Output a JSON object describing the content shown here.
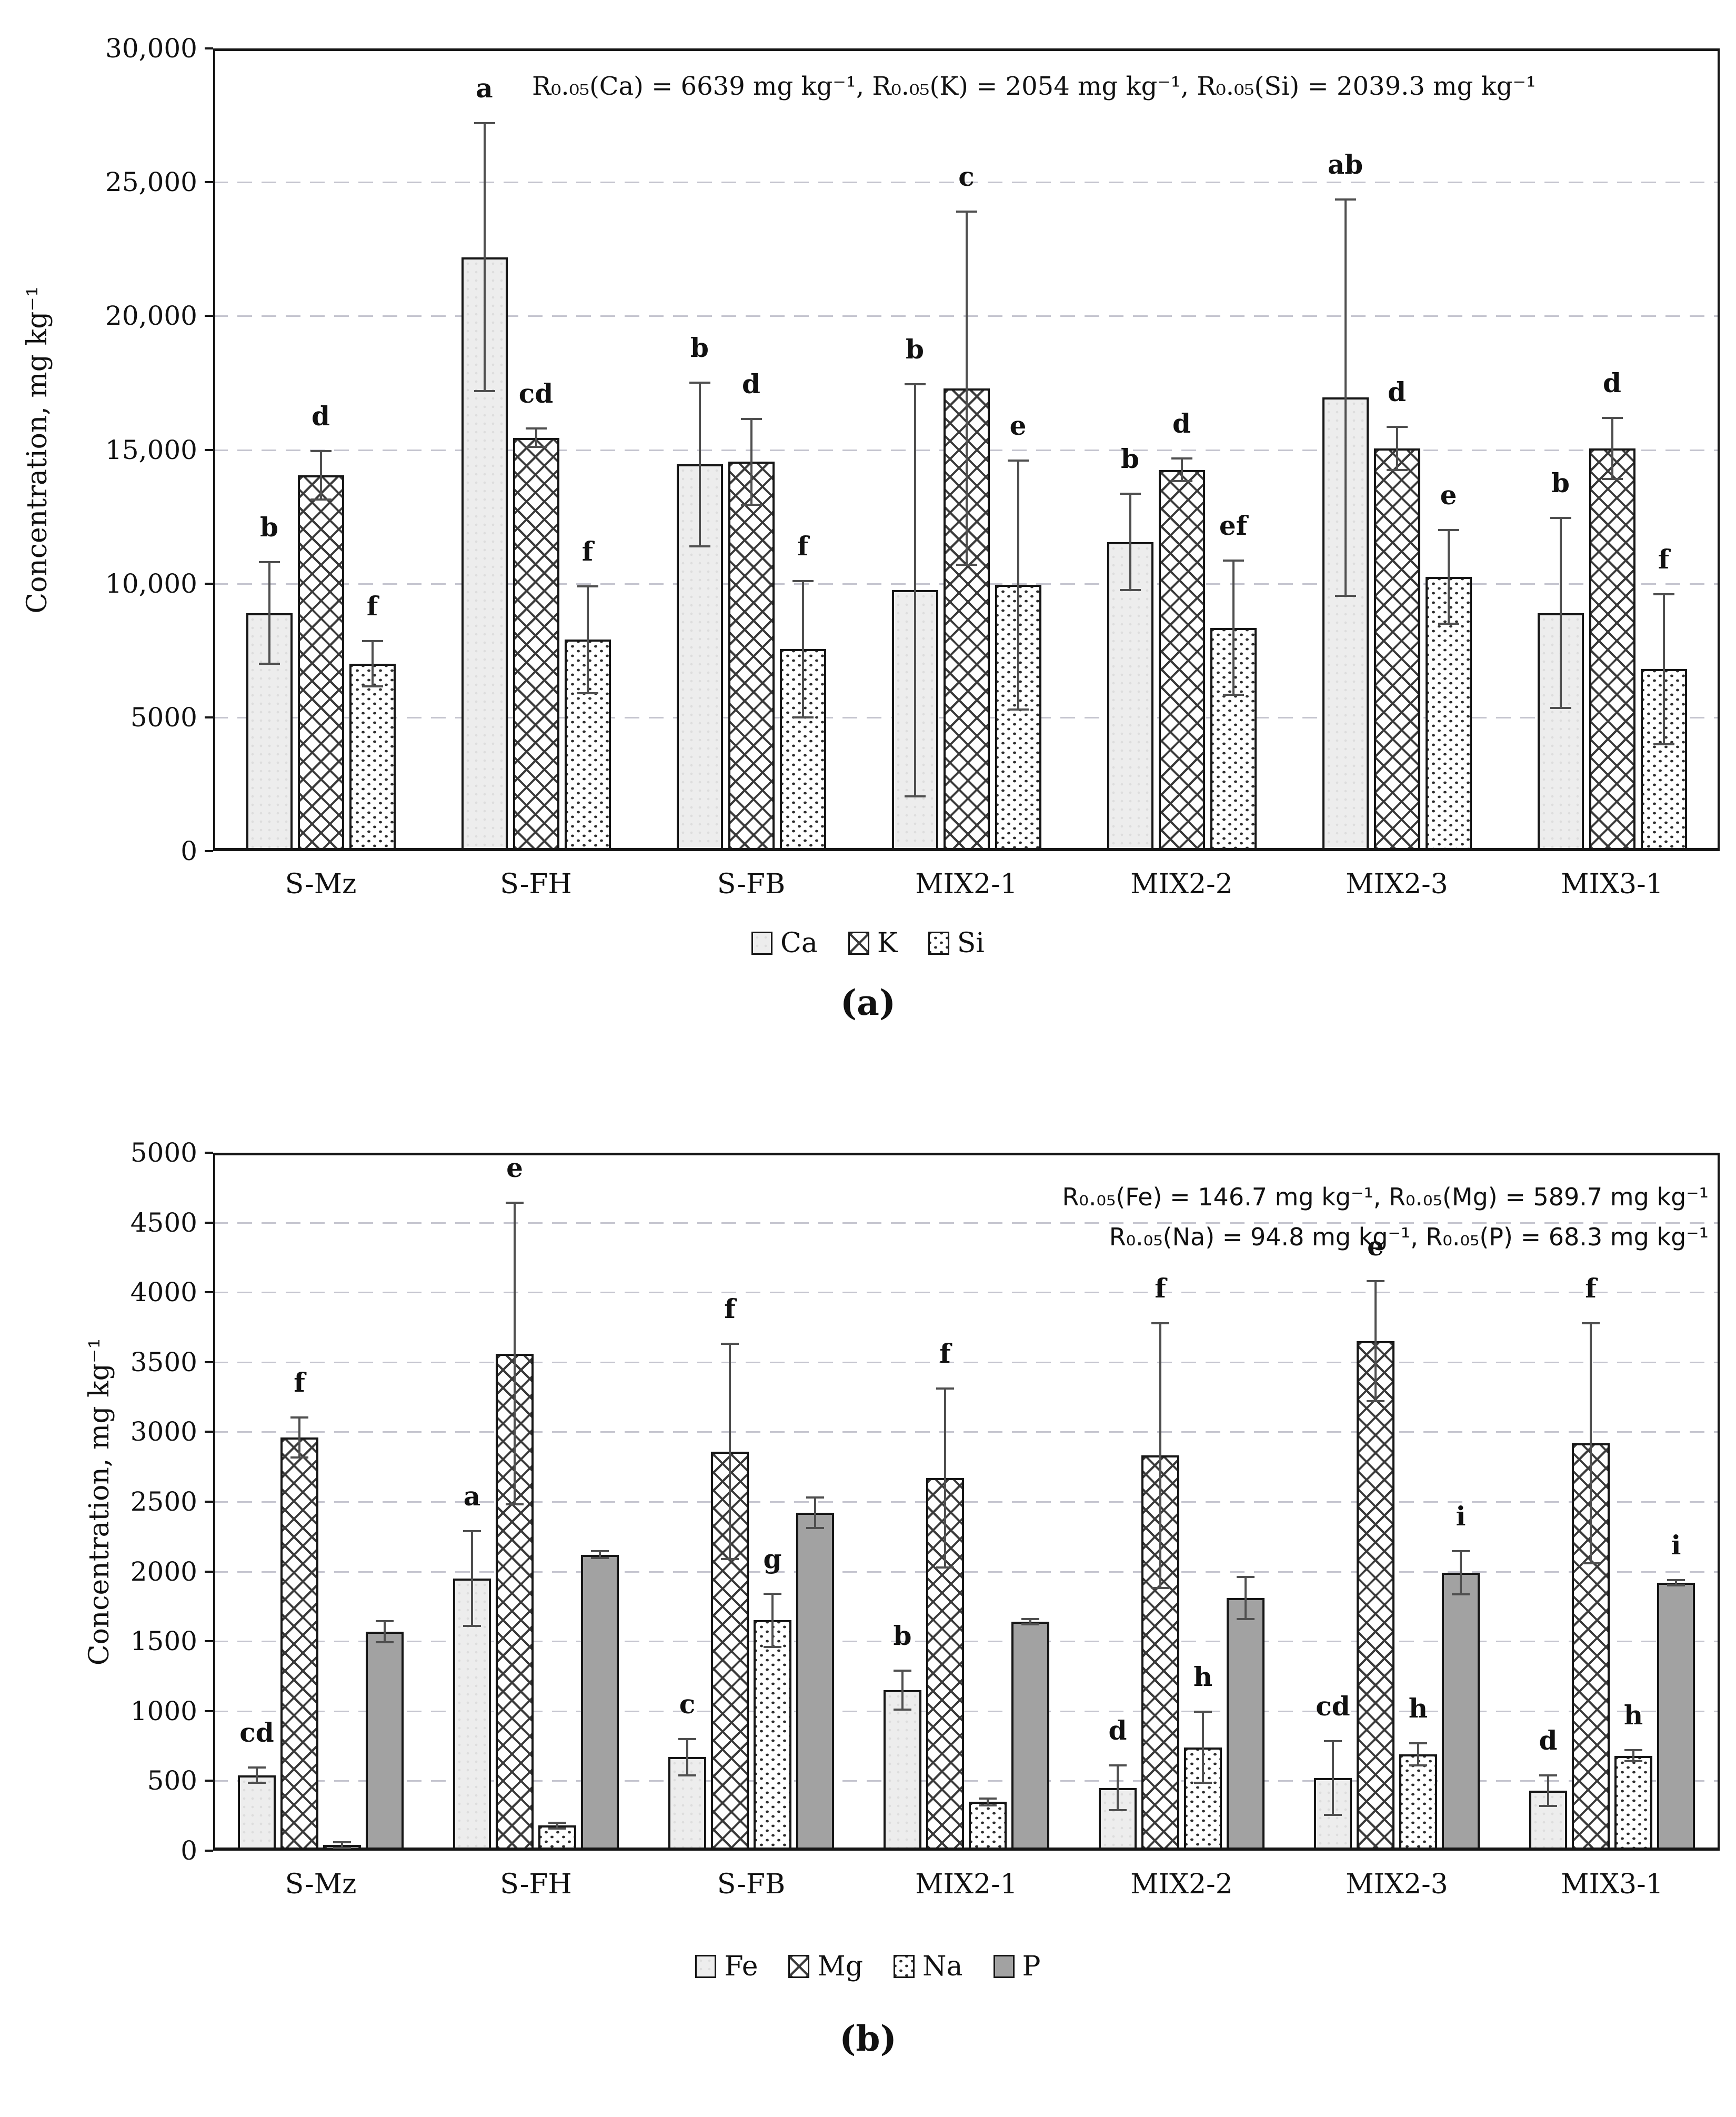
{
  "colors": {
    "background": "#ffffff",
    "bar_light_fill": "#ededed",
    "bar_solid_fill": "#a2a2a2",
    "pattern_line": "#3a3a3a",
    "bar_border": "#161616",
    "error_bar": "#4f4f4f",
    "gridline": "#c5c5cf",
    "axis": "#161616",
    "text": "#111111"
  },
  "chart_data": [
    {
      "type": "bar",
      "panel": "a",
      "caption": "(a)",
      "ylabel": "Concentration, mg kg⁻¹",
      "annotation": "R₀.₀₅(Ca) = 6639 mg kg⁻¹,  R₀.₀₅(K) = 2054 mg kg⁻¹, R₀.₀₅(Si) = 2039.3 mg kg⁻¹",
      "categories": [
        "S-Mz",
        "S-FH",
        "S-FB",
        "MIX2-1",
        "MIX2-2",
        "MIX2-3",
        "MIX3-1"
      ],
      "ylim": [
        0,
        30000
      ],
      "grid": "horizontal dashed",
      "legend_position": "bottom center",
      "yticks": [
        {
          "v": 0,
          "label": "0"
        },
        {
          "v": 5000,
          "label": "5000"
        },
        {
          "v": 10000,
          "label": "10,000"
        },
        {
          "v": 15000,
          "label": "15,000"
        },
        {
          "v": 20000,
          "label": "20,000"
        },
        {
          "v": 25000,
          "label": "25,000"
        },
        {
          "v": 30000,
          "label": "30,000"
        }
      ],
      "series": [
        {
          "name": "Ca",
          "pattern": "light",
          "values": [
            8900,
            22200,
            14450,
            9750,
            11550,
            16950,
            8900
          ],
          "errors": [
            1900,
            5000,
            3050,
            7700,
            1800,
            7400,
            3550
          ],
          "letters": [
            "b",
            "a",
            "b",
            "b",
            "b",
            "ab",
            "b"
          ]
        },
        {
          "name": "K",
          "pattern": "crosshatch",
          "values": [
            14050,
            15450,
            14550,
            17300,
            14250,
            15050,
            15050
          ],
          "errors": [
            900,
            350,
            1600,
            6600,
            420,
            800,
            1150
          ],
          "letters": [
            "d",
            "cd",
            "d",
            "c",
            "d",
            "d",
            "d"
          ]
        },
        {
          "name": "Si",
          "pattern": "dots",
          "values": [
            7000,
            7900,
            7550,
            9950,
            8350,
            10250,
            6800
          ],
          "errors": [
            850,
            2000,
            2550,
            4650,
            2500,
            1750,
            2800
          ],
          "letters": [
            "f",
            "f",
            "f",
            "e",
            "ef",
            "e",
            "f"
          ]
        }
      ]
    },
    {
      "type": "bar",
      "panel": "b",
      "caption": "(b)",
      "ylabel": "Concentration, mg kg⁻¹",
      "annotation_line1": "R₀.₀₅(Fe) = 146.7 mg kg⁻¹, R₀.₀₅(Mg) = 589.7 mg kg⁻¹",
      "annotation_line2": "R₀.₀₅(Na) = 94.8 mg kg⁻¹, R₀.₀₅(P) = 68.3 mg kg⁻¹",
      "categories": [
        "S-Mz",
        "S-FH",
        "S-FB",
        "MIX2-1",
        "MIX2-2",
        "MIX2-3",
        "MIX3-1"
      ],
      "ylim": [
        0,
        5000
      ],
      "grid": "horizontal dashed",
      "legend_position": "bottom center",
      "yticks": [
        {
          "v": 0,
          "label": "0"
        },
        {
          "v": 500,
          "label": "500"
        },
        {
          "v": 1000,
          "label": "1000"
        },
        {
          "v": 1500,
          "label": "1500"
        },
        {
          "v": 2000,
          "label": "2000"
        },
        {
          "v": 2500,
          "label": "2500"
        },
        {
          "v": 3000,
          "label": "3000"
        },
        {
          "v": 3500,
          "label": "3500"
        },
        {
          "v": 4000,
          "label": "4000"
        },
        {
          "v": 4500,
          "label": "4500"
        },
        {
          "v": 5000,
          "label": "5000"
        }
      ],
      "series": [
        {
          "name": "Fe",
          "pattern": "light",
          "values": [
            540,
            1950,
            670,
            1150,
            450,
            520,
            430
          ],
          "errors": [
            55,
            340,
            130,
            140,
            160,
            265,
            110
          ],
          "letters": [
            "cd",
            "a",
            "c",
            "b",
            "d",
            "cd",
            "d"
          ]
        },
        {
          "name": "Mg",
          "pattern": "crosshatch",
          "values": [
            2960,
            3560,
            2860,
            2670,
            2830,
            3650,
            2920
          ],
          "errors": [
            145,
            1080,
            770,
            640,
            950,
            430,
            860
          ],
          "letters": [
            "f",
            "e",
            "f",
            "f",
            "f",
            "e",
            "f"
          ]
        },
        {
          "name": "Na",
          "pattern": "dots",
          "values": [
            40,
            180,
            1650,
            350,
            740,
            690,
            680
          ],
          "errors": [
            20,
            20,
            190,
            25,
            255,
            80,
            40
          ],
          "letters": [
            "",
            "",
            "g",
            "",
            "h",
            "h",
            "h"
          ]
        },
        {
          "name": "P",
          "pattern": "solid",
          "values": [
            1570,
            2120,
            2420,
            1640,
            1810,
            1990,
            1920
          ],
          "errors": [
            75,
            25,
            110,
            20,
            150,
            155,
            20
          ],
          "letters": [
            "",
            "",
            "",
            "",
            "",
            "i",
            "i"
          ]
        }
      ]
    }
  ]
}
